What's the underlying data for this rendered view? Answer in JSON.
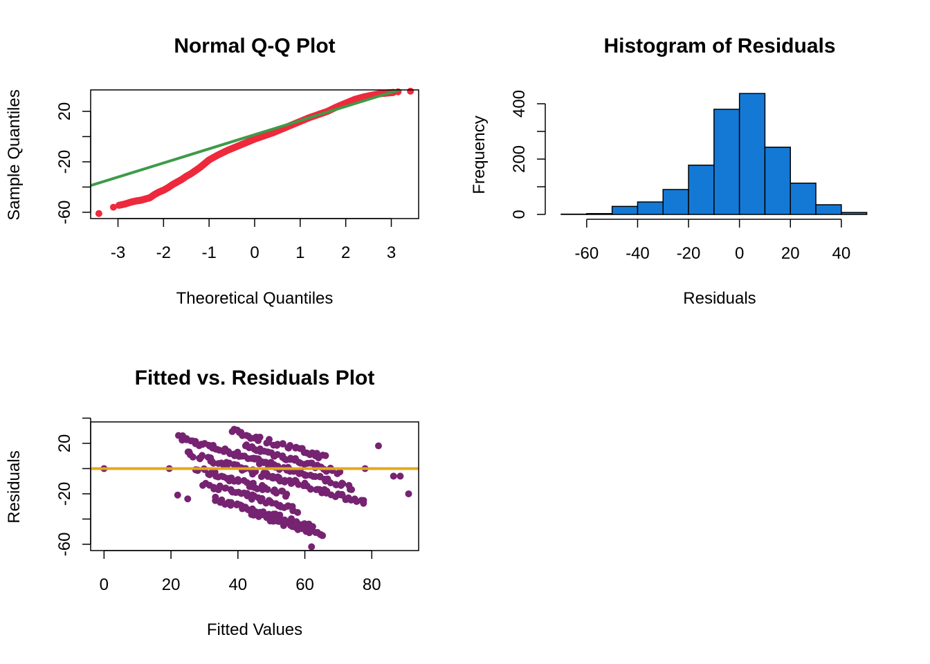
{
  "chart_data": [
    {
      "type": "scatter",
      "title": "Normal Q-Q Plot",
      "xlabel": "Theoretical Quantiles",
      "ylabel": "Sample Quantiles",
      "xlim": [
        -3.6,
        3.6
      ],
      "ylim": [
        -65,
        37
      ],
      "x_ticks": [
        -3,
        -2,
        -1,
        0,
        1,
        2,
        3
      ],
      "y_ticks": [
        -60,
        -40,
        -20,
        0,
        20,
        40
      ],
      "y_tick_labels": [
        "-60",
        "",
        "-20",
        "",
        "20",
        ""
      ],
      "point_color": "#ee2a3d",
      "line_color": "#3e9a48",
      "reference_line": {
        "intercept": 1.5,
        "slope": 11.2
      },
      "series": [
        {
          "x": [
            -3.42,
            -3.1,
            -2.98,
            -2.85,
            -2.72,
            -2.6,
            -2.5,
            -2.4,
            -2.3,
            -2.2,
            -2.1,
            -2.0,
            -1.9,
            -1.8,
            -1.7,
            -1.6,
            -1.5,
            -1.4,
            -1.3,
            -1.2,
            -1.1,
            -1.0,
            -0.8,
            -0.6,
            -0.4,
            -0.2,
            0.0,
            0.2,
            0.4,
            0.6,
            0.8,
            1.0,
            1.2,
            1.4,
            1.6,
            1.8,
            2.0,
            2.2,
            2.4,
            2.6,
            2.75,
            2.9,
            3.05,
            3.15,
            3.42
          ],
          "y": [
            -61,
            -56,
            -54.5,
            -53.5,
            -52,
            -51,
            -50.5,
            -49.5,
            -48.5,
            -46,
            -44,
            -42.5,
            -40.5,
            -38,
            -36,
            -34,
            -31.5,
            -29.5,
            -27,
            -24.5,
            -21.5,
            -18.5,
            -14.5,
            -11,
            -8,
            -5,
            -2,
            0.5,
            3,
            6,
            9,
            12,
            15,
            17.5,
            20,
            23.5,
            26.5,
            29.5,
            31.5,
            33,
            34,
            34.5,
            35,
            35.5,
            36
          ]
        }
      ]
    },
    {
      "type": "bar",
      "title": "Histogram of Residuals",
      "xlabel": "Residuals",
      "ylabel": "Frequency",
      "bar_color": "#1479d5",
      "xlim": [
        -73,
        52
      ],
      "ylim": [
        0,
        450
      ],
      "x_ticks": [
        -60,
        -40,
        -20,
        0,
        20,
        40
      ],
      "y_ticks": [
        0,
        100,
        200,
        300,
        400
      ],
      "y_tick_labels": [
        "0",
        "",
        "200",
        "",
        "400"
      ],
      "bin_edges": [
        -70,
        -60,
        -50,
        -40,
        -30,
        -20,
        -10,
        0,
        10,
        20,
        30,
        40,
        50
      ],
      "values": [
        1,
        3,
        29,
        45,
        90,
        178,
        380,
        437,
        243,
        113,
        35,
        7
      ]
    },
    {
      "type": "scatter",
      "title": "Fitted vs. Residuals Plot",
      "xlabel": "Fitted Values",
      "ylabel": "Residuals",
      "point_color": "#762372",
      "line_color": "#e3a81a",
      "reference_line": {
        "intercept": 0,
        "slope": 0
      },
      "xlim": [
        -4,
        94
      ],
      "ylim": [
        -65,
        37
      ],
      "x_ticks": [
        0,
        20,
        40,
        60,
        80
      ],
      "y_ticks": [
        -60,
        -40,
        -20,
        0,
        20,
        40
      ],
      "y_tick_labels": [
        "-60",
        "",
        "-20",
        "",
        "20",
        ""
      ],
      "outliers": {
        "x": [
          0,
          19.5,
          22,
          23.5,
          25,
          86.5,
          88.5,
          91,
          78,
          82,
          62
        ],
        "y": [
          0,
          0,
          -21,
          26,
          -24,
          -6,
          -6,
          -20,
          0,
          18,
          -62
        ]
      },
      "band_groups": [
        {
          "x0": 23,
          "x1": 48,
          "y_base": 24
        },
        {
          "x0": 25,
          "x1": 52,
          "y_base": 12
        },
        {
          "x0": 27,
          "x1": 55,
          "y_base": 0
        },
        {
          "x0": 30,
          "x1": 58,
          "y_base": -12
        },
        {
          "x0": 33,
          "x1": 62,
          "y_base": -24
        },
        {
          "x0": 38,
          "x1": 66,
          "y_base": 30
        },
        {
          "x0": 42,
          "x1": 70,
          "y_base": 18
        },
        {
          "x0": 46,
          "x1": 74,
          "y_base": 6
        },
        {
          "x0": 50,
          "x1": 78,
          "y_base": -6
        },
        {
          "x0": 44,
          "x1": 66,
          "y_base": -36
        }
      ],
      "band_slope": -0.75
    }
  ]
}
